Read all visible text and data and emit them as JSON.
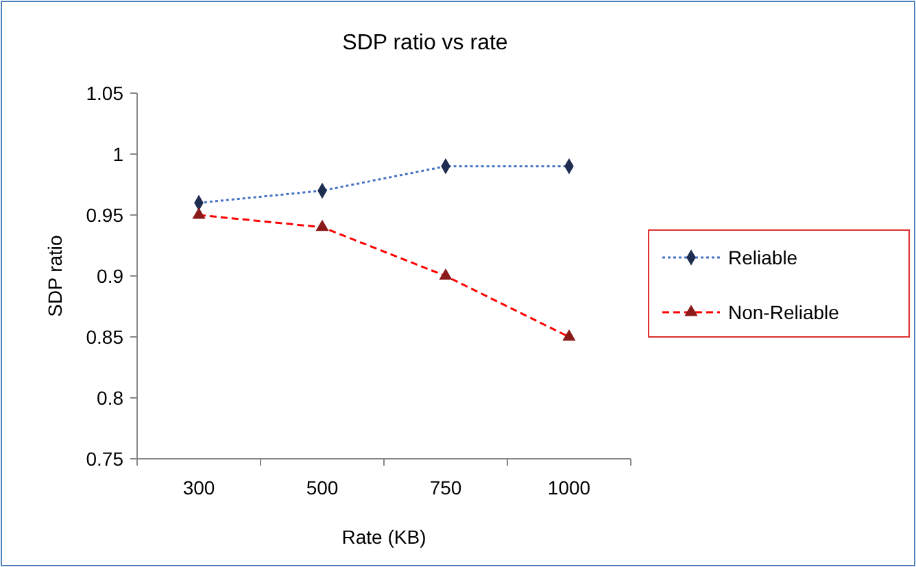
{
  "chart_data": {
    "type": "line",
    "title": "SDP ratio vs rate",
    "xlabel": "Rate (KB)",
    "ylabel": "SDP ratio",
    "categories": [
      "300",
      "500",
      "750",
      "1000"
    ],
    "series": [
      {
        "name": "Reliable",
        "color": "#4472c4",
        "marker": "diamond",
        "line_style": "dotted",
        "values": [
          0.96,
          0.97,
          0.99,
          0.99
        ]
      },
      {
        "name": "Non-Reliable",
        "color": "#ff0000",
        "marker": "triangle",
        "line_style": "dashed",
        "values": [
          0.95,
          0.94,
          0.9,
          0.85
        ]
      }
    ],
    "ylim": [
      0.75,
      1.05
    ],
    "yticks": [
      {
        "value": 0.75,
        "label": "0.75"
      },
      {
        "value": 0.8,
        "label": "0.8"
      },
      {
        "value": 0.85,
        "label": "0.85"
      },
      {
        "value": 0.9,
        "label": "0.9"
      },
      {
        "value": 0.95,
        "label": "0.95"
      },
      {
        "value": 1,
        "label": "1"
      },
      {
        "value": 1.05,
        "label": "1.05"
      }
    ],
    "grid": false,
    "legend": "right"
  }
}
